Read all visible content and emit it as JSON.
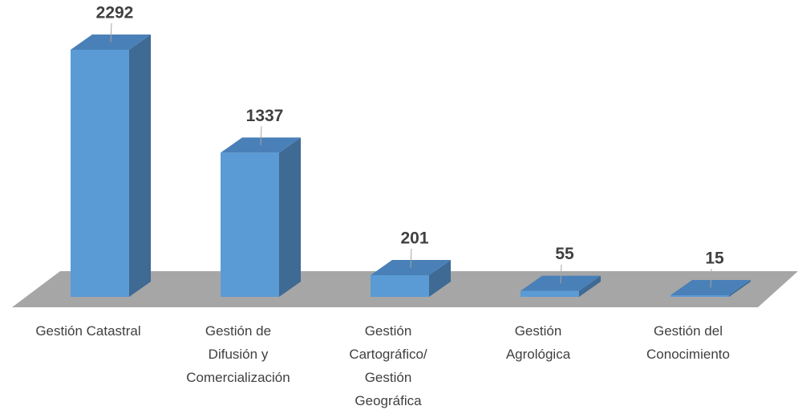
{
  "chart_data": {
    "type": "bar3d",
    "categories": [
      "Gestión Catastral",
      "Gestión de\nDifusión y\nComercialización",
      "Gestión\nCartográfico/\nGestión\nGeográfica",
      "Gestión\nAgrológica",
      "Gestión del\nConocimiento"
    ],
    "values": [
      2292,
      1337,
      201,
      55,
      15
    ],
    "color": "#5b9bd5"
  }
}
